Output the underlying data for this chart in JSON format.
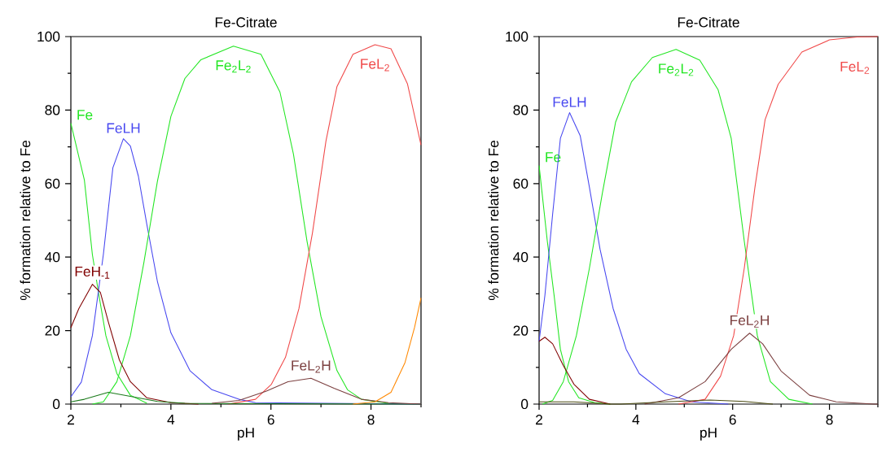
{
  "chart_data": [
    {
      "type": "line",
      "title": "Fe-Citrate",
      "xlabel": "pH",
      "ylabel": "% formation relative to Fe",
      "xlim": [
        2,
        9
      ],
      "ylim": [
        0,
        100
      ],
      "xticks": [
        2,
        {
          "value": 3,
          "label": null
        },
        4,
        {
          "value": 5,
          "label": null
        },
        6,
        {
          "value": 7,
          "label": null
        },
        8,
        {
          "value": 9,
          "label": null
        }
      ],
      "yticks": [
        0,
        {
          "value": 10,
          "label": null
        },
        20,
        {
          "value": 30,
          "label": null
        },
        40,
        {
          "value": 50,
          "label": null
        },
        60,
        {
          "value": 70,
          "label": null
        },
        80,
        {
          "value": 90,
          "label": null
        },
        100
      ],
      "marker": "none",
      "line_style": "solid",
      "series": [
        {
          "name": "Fe",
          "color": "#22e622",
          "x": [
            2.0,
            2.27,
            2.43,
            2.56,
            2.7,
            2.92,
            3.19,
            3.52
          ],
          "values": [
            76.4,
            61,
            40.7,
            29.7,
            18.6,
            8.3,
            2.4,
            0.2
          ]
        },
        {
          "name": "FeLH",
          "color": "#4848f0",
          "x": [
            2.0,
            2.21,
            2.43,
            2.65,
            2.84,
            3.05,
            3.19,
            3.35,
            3.52,
            3.73,
            4.0,
            4.38,
            4.82,
            5.36,
            5.69,
            9.0
          ],
          "values": [
            2,
            6,
            18.6,
            40.7,
            64.3,
            72.2,
            70.2,
            62,
            48.8,
            33.4,
            19.4,
            9.1,
            3.9,
            1.3,
            0.4,
            0
          ]
        },
        {
          "name": "Fe$_{2}$L$_{2}$",
          "color": "#22e622",
          "x": [
            2.43,
            2.65,
            2.92,
            3.19,
            3.46,
            3.73,
            4.0,
            4.28,
            4.6,
            5.25,
            5.8,
            6.18,
            6.45,
            6.72,
            7.0,
            7.32,
            7.53,
            7.81,
            8.35
          ],
          "values": [
            0,
            0.6,
            6.1,
            18.6,
            38.5,
            60.6,
            78.3,
            88.6,
            93.7,
            97.4,
            95.2,
            84.9,
            68,
            44.4,
            23.8,
            9.1,
            3.9,
            1.3,
            0.2
          ]
        },
        {
          "name": "FeL$_{2}$",
          "color": "#f04848",
          "x": [
            5.15,
            5.69,
            6.01,
            6.29,
            6.56,
            6.83,
            7.1,
            7.32,
            7.64,
            8.08,
            8.4,
            8.73,
            9.0
          ],
          "values": [
            0,
            1.3,
            5.4,
            12.7,
            26,
            46.6,
            71.6,
            86.4,
            95.2,
            97.8,
            96.7,
            87.1,
            70.5
          ]
        },
        {
          "name": "FeH$_{-1}$",
          "color": "#800000",
          "x": [
            2.0,
            2.16,
            2.43,
            2.59,
            2.75,
            2.97,
            3.19,
            3.52,
            4.0,
            4.55
          ],
          "values": [
            20.8,
            26,
            32.6,
            30.4,
            22.3,
            12,
            6.1,
            1.7,
            0.4,
            0
          ]
        },
        {
          "color": "#1a7a1a",
          "x": [
            2.0,
            2.27,
            2.75,
            3.19,
            3.73,
            4.28,
            9.0
          ],
          "values": [
            0.6,
            1.3,
            3.2,
            2.1,
            0.7,
            0.2,
            0
          ]
        },
        {
          "name": "FeL$_{2}$H",
          "color": "#7b3f3f",
          "x": [
            4.82,
            5.36,
            5.9,
            6.34,
            6.8,
            7.26,
            7.81,
            8.35,
            9.0
          ],
          "values": [
            0.2,
            1,
            3.5,
            6.1,
            7,
            4.3,
            1.3,
            0.4,
            0
          ]
        },
        {
          "color": "#ff8800",
          "x": [
            7.64,
            8.08,
            8.4,
            8.68,
            8.87,
            9.0
          ],
          "values": [
            0,
            0.6,
            3.2,
            11.3,
            20.8,
            28.9
          ]
        }
      ]
    },
    {
      "type": "line",
      "title": "Fe-Citrate",
      "xlabel": "pH",
      "ylabel": "% formation relative to Fe",
      "xlim": [
        2,
        9
      ],
      "ylim": [
        0,
        100
      ],
      "xticks": [
        2,
        {
          "value": 3,
          "label": null
        },
        4,
        {
          "value": 5,
          "label": null
        },
        6,
        {
          "value": 7,
          "label": null
        },
        8,
        {
          "value": 9,
          "label": null
        }
      ],
      "yticks": [
        0,
        {
          "value": 10,
          "label": null
        },
        20,
        {
          "value": 30,
          "label": null
        },
        40,
        {
          "value": 50,
          "label": null
        },
        60,
        {
          "value": 70,
          "label": null
        },
        80,
        {
          "value": 90,
          "label": null
        },
        100
      ],
      "marker": "none",
      "line_style": "solid",
      "series": [
        {
          "name": "Fe",
          "color": "#22e622",
          "x": [
            2.0,
            2.17,
            2.31,
            2.44,
            2.61,
            2.82,
            3.15,
            3.47
          ],
          "values": [
            64.9,
            44.3,
            29.6,
            14.9,
            6.1,
            1.7,
            0.4,
            0
          ]
        },
        {
          "name": "FeLH",
          "color": "#4848f0",
          "x": [
            2.0,
            2.12,
            2.28,
            2.44,
            2.63,
            2.85,
            3.04,
            3.26,
            3.53,
            3.8,
            4.07,
            4.61,
            5.15,
            5.91
          ],
          "values": [
            17.1,
            29.6,
            51.7,
            72.3,
            79.3,
            73,
            59,
            42.1,
            26,
            14.9,
            8.3,
            2.8,
            0.6,
            0
          ]
        },
        {
          "name": "Fe$_{2}$L$_{2}$",
          "color": "#22e622",
          "x": [
            2.07,
            2.28,
            2.5,
            2.77,
            3.04,
            3.31,
            3.58,
            3.91,
            4.34,
            4.83,
            5.32,
            5.7,
            5.97,
            6.24,
            6.51,
            6.78,
            7.16,
            7.65
          ],
          "values": [
            0,
            1,
            6.1,
            18.6,
            37,
            57.6,
            76.7,
            87.7,
            94.3,
            96.5,
            93.6,
            85.5,
            72.3,
            44.3,
            18.6,
            6.1,
            1.3,
            0
          ]
        },
        {
          "name": "FeL$_{2}$",
          "color": "#f04848",
          "x": [
            4.88,
            5.43,
            5.75,
            6.02,
            6.24,
            6.46,
            6.67,
            6.94,
            7.43,
            8.0,
            8.57,
            9.0
          ],
          "values": [
            0,
            1.3,
            7.6,
            18.6,
            37,
            59,
            77.4,
            87,
            95.8,
            99.1,
            99.9,
            100
          ]
        },
        {
          "color": "#800000",
          "x": [
            2.0,
            2.12,
            2.28,
            2.5,
            2.72,
            3.04,
            3.47
          ],
          "values": [
            17.1,
            18.2,
            16.4,
            10.5,
            5.4,
            1.3,
            0
          ]
        },
        {
          "name": "FeL$_{2}$H",
          "color": "#7b3f3f",
          "x": [
            4.18,
            4.88,
            5.43,
            5.97,
            6.35,
            6.62,
            7.0,
            7.59,
            8.14,
            8.92,
            9.0
          ],
          "values": [
            0,
            1.7,
            6.1,
            14.9,
            19.3,
            16.4,
            9,
            2.4,
            0.6,
            0,
            0
          ]
        },
        {
          "color": "#4a4a10",
          "x": [
            2.0,
            2.72,
            3.47,
            3.69,
            4.61,
            5.53,
            6.24,
            6.83
          ],
          "values": [
            0.6,
            0.6,
            0,
            0,
            0.6,
            1.1,
            0.7,
            0
          ]
        }
      ]
    }
  ]
}
